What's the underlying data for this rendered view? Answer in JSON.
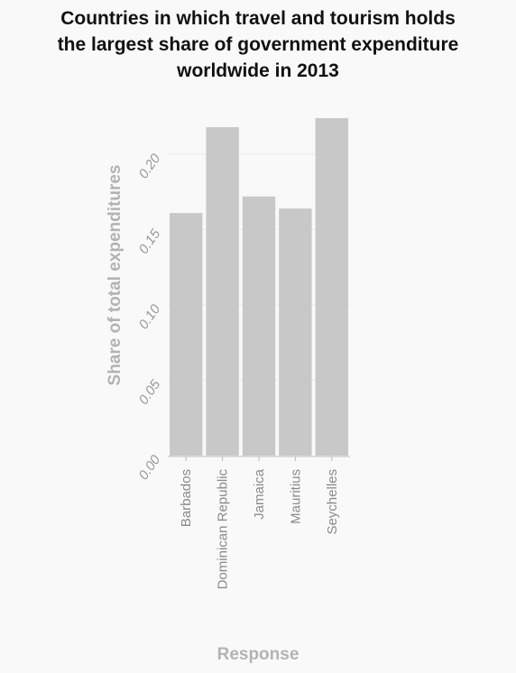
{
  "chart_data": {
    "type": "bar",
    "title_lines": [
      "Countries in which travel and tourism holds",
      "the largest share of government expenditure",
      "worldwide in 2013"
    ],
    "xlabel": "Response",
    "ylabel": "Share of total expenditures",
    "categories": [
      "Barbados",
      "Dominican Republic",
      "Jamaica",
      "Mauritius",
      "Seychelles"
    ],
    "values": [
      0.161,
      0.218,
      0.172,
      0.164,
      0.224
    ],
    "ylim": [
      0,
      0.2
    ],
    "yticks": [
      0.0,
      0.05,
      0.1,
      0.15,
      0.2
    ],
    "ytick_labels": [
      "0.00",
      "0.05",
      "0.10",
      "0.15",
      "0.20"
    ],
    "grid": true,
    "bar_color": "#c8c8c8"
  }
}
